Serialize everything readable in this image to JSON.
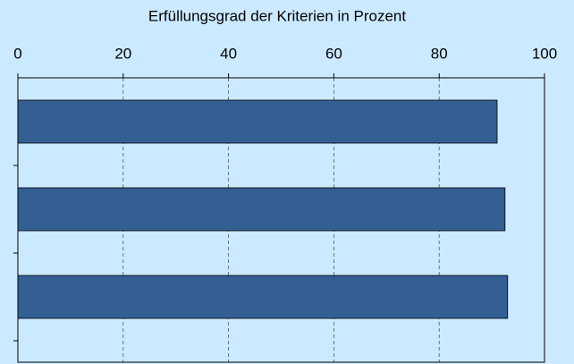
{
  "chart_data": {
    "type": "hbar",
    "title": "Erfüllungsgrad der Kriterien in Prozent",
    "categories": [
      null,
      null,
      null
    ],
    "values": [
      91,
      92.5,
      93
    ],
    "color": "#335f93",
    "xlim": [
      0,
      100
    ],
    "xticks": [
      0,
      20,
      40,
      60,
      80,
      100
    ],
    "grid": true
  }
}
